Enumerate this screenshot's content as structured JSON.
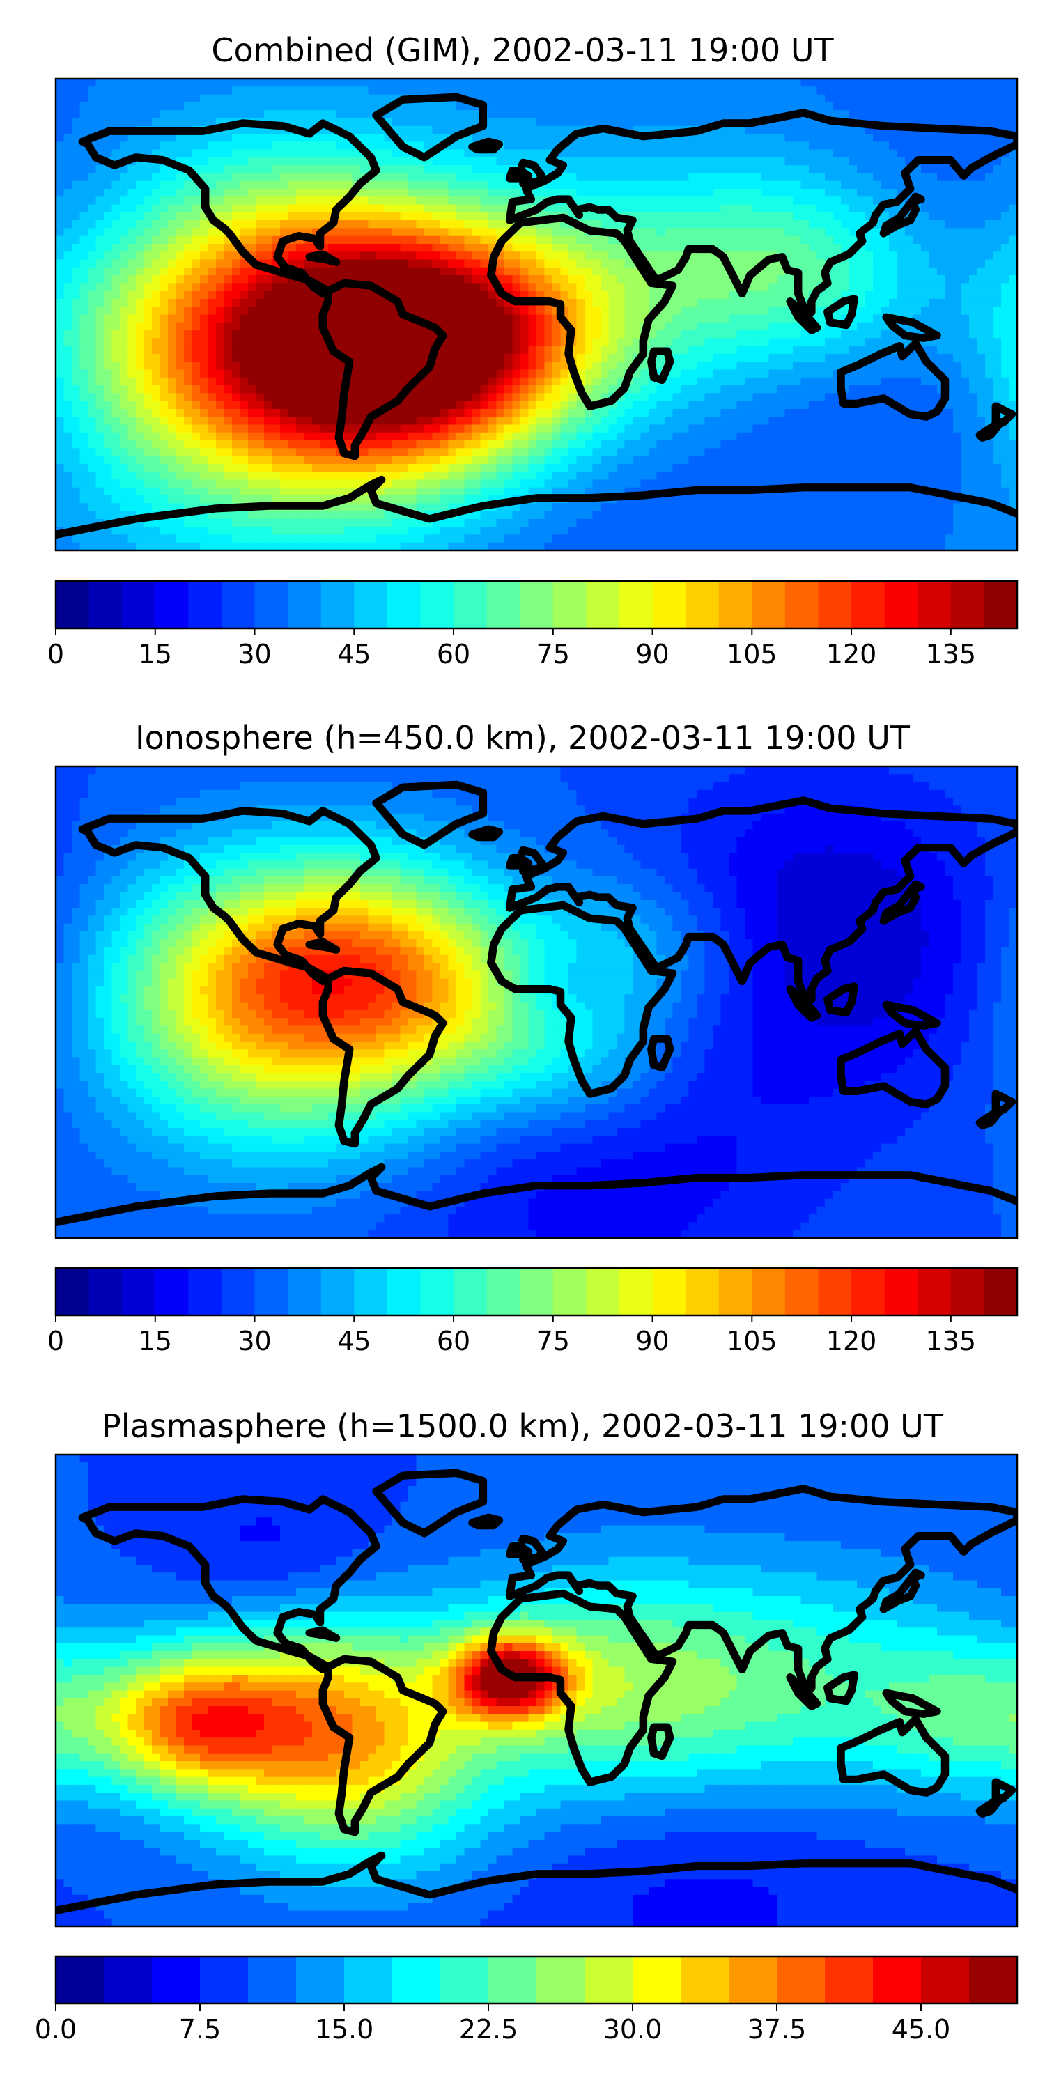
{
  "chart_data": [
    {
      "type": "heatmap",
      "title": "Combined (GIM), 2002-03-11 19:00 UT",
      "colormap": "jet",
      "colorbar_range": [
        0,
        145
      ],
      "colorbar_levels": 29,
      "colorbar_ticks": [
        "0",
        "15",
        "30",
        "45",
        "60",
        "75",
        "90",
        "105",
        "120",
        "135"
      ],
      "background_value": 35,
      "features": [
        {
          "lon": -85,
          "lat": -20,
          "value": 75,
          "r": 80
        },
        {
          "lon": -55,
          "lat": -10,
          "value": 60,
          "r": 60
        },
        {
          "lon": -30,
          "lat": -10,
          "value": 40,
          "r": 55
        },
        {
          "lon": 30,
          "lat": 5,
          "value": 20,
          "r": 60
        },
        {
          "lon": 85,
          "lat": 25,
          "value": 20,
          "r": 50
        },
        {
          "lon": 110,
          "lat": 10,
          "value": 15,
          "r": 45
        },
        {
          "lon": -100,
          "lat": 35,
          "value": 15,
          "r": 50
        },
        {
          "lon": 150,
          "lat": -30,
          "value": -10,
          "r": 60
        },
        {
          "lon": 150,
          "lat": 50,
          "value": -5,
          "r": 60
        },
        {
          "lon": 0,
          "lat": -60,
          "value": -10,
          "r": 80
        },
        {
          "lon": -140,
          "lat": -10,
          "value": 15,
          "r": 50
        }
      ]
    },
    {
      "type": "heatmap",
      "title": "Ionosphere  (h=450.0 km), 2002-03-11 19:00 UT",
      "colormap": "jet",
      "colorbar_range": [
        0,
        145
      ],
      "colorbar_levels": 29,
      "colorbar_ticks": [
        "0",
        "15",
        "30",
        "45",
        "60",
        "75",
        "90",
        "105",
        "120",
        "135"
      ],
      "background_value": 30,
      "features": [
        {
          "lon": -85,
          "lat": -5,
          "value": 55,
          "r": 70
        },
        {
          "lon": -60,
          "lat": 20,
          "value": 30,
          "r": 50
        },
        {
          "lon": -110,
          "lat": 10,
          "value": 25,
          "r": 60
        },
        {
          "lon": -20,
          "lat": -5,
          "value": 20,
          "r": 45
        },
        {
          "lon": 40,
          "lat": 20,
          "value": 15,
          "r": 40
        },
        {
          "lon": 20,
          "lat": -25,
          "value": 15,
          "r": 40
        },
        {
          "lon": 5,
          "lat": 5,
          "value": -10,
          "r": 20
        },
        {
          "lon": 130,
          "lat": 10,
          "value": -15,
          "r": 70
        },
        {
          "lon": 20,
          "lat": -60,
          "value": -15,
          "r": 80
        },
        {
          "lon": 100,
          "lat": 50,
          "value": -10,
          "r": 60
        }
      ]
    },
    {
      "type": "heatmap",
      "title": "Plasmasphere (h=1500.0 km), 2002-03-11 19:00 UT",
      "colormap": "jet",
      "colorbar_range": [
        0,
        50
      ],
      "colorbar_levels": 20,
      "colorbar_ticks": [
        "0.0",
        "7.5",
        "15.0",
        "22.5",
        "30.0",
        "37.5",
        "45.0"
      ],
      "background_value": 10,
      "features": [
        {
          "lon": -80,
          "lat": -12,
          "value": 24,
          "r": 55
        },
        {
          "lon": -130,
          "lat": -12,
          "value": 20,
          "r": 35
        },
        {
          "lon": -10,
          "lat": 5,
          "value": 30,
          "r": 22
        },
        {
          "lon": 30,
          "lat": 0,
          "value": 16,
          "r": 60
        },
        {
          "lon": 110,
          "lat": 0,
          "value": 10,
          "r": 60
        },
        {
          "lon": 170,
          "lat": -10,
          "value": 10,
          "r": 40
        },
        {
          "lon": -60,
          "lat": -45,
          "value": 6,
          "r": 50
        },
        {
          "lon": -100,
          "lat": 50,
          "value": -4,
          "r": 40
        },
        {
          "lon": 60,
          "lat": -60,
          "value": -4,
          "r": 80
        }
      ]
    }
  ]
}
